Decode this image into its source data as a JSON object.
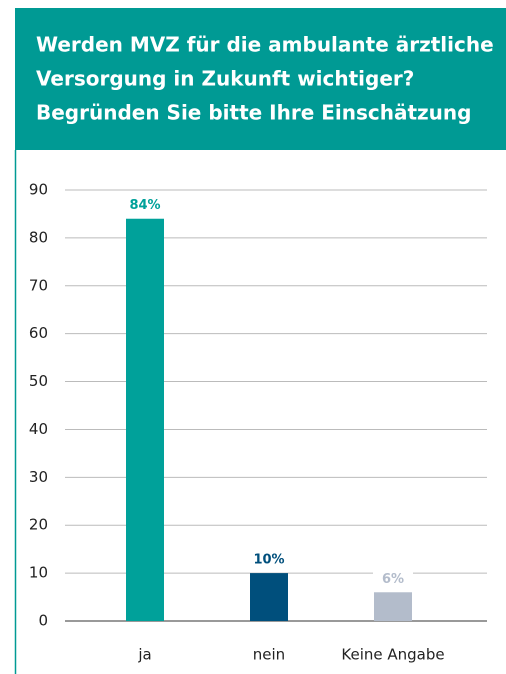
{
  "chart_data": {
    "type": "bar",
    "title": [
      "Werden MVZ für die ambulante ärztliche",
      "Versorgung in Zukunft wichtiger?",
      "Begründen Sie bitte Ihre Einschätzung"
    ],
    "categories": [
      "ja",
      "nein",
      "Keine Angabe"
    ],
    "values": [
      84,
      10,
      6
    ],
    "value_labels": [
      "84%",
      "10%",
      "6%"
    ],
    "colors": [
      "#00a19a",
      "#004f7c",
      "#b3bccb"
    ],
    "ylim": [
      0,
      90
    ],
    "yticks": [
      0,
      10,
      20,
      30,
      40,
      50,
      60,
      70,
      80,
      90
    ],
    "grid": true
  }
}
